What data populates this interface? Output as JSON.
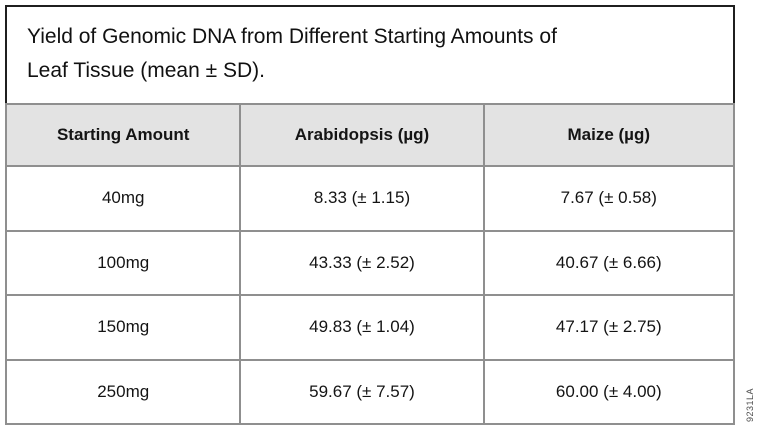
{
  "figure": {
    "title": "Yield of Genomic DNA from Different Starting Amounts of Leaf Tissue (mean ± SD).",
    "title_line1": "Yield of Genomic DNA from Different Starting Amounts of",
    "title_line2": "Leaf Tissue (mean ± SD).",
    "watermark": "9231LA"
  },
  "table": {
    "columns": [
      "Starting Amount",
      "Arabidopsis (µg)",
      "Maize (µg)"
    ],
    "rows": [
      [
        "40mg",
        "8.33 (± 1.15)",
        "7.67 (± 0.58)"
      ],
      [
        "100mg",
        "43.33 (± 2.52)",
        "40.67 (± 6.66)"
      ],
      [
        "150mg",
        "49.83 (± 1.04)",
        "47.17 (± 2.75)"
      ],
      [
        "250mg",
        "59.67 (± 7.57)",
        "60.00 (± 4.00)"
      ]
    ]
  },
  "chart_data": {
    "type": "table",
    "title": "Yield of Genomic DNA from Different Starting Amounts of Leaf Tissue (mean ± SD).",
    "categories": [
      "40mg",
      "100mg",
      "150mg",
      "250mg"
    ],
    "series": [
      {
        "name": "Arabidopsis (µg)",
        "mean": [
          8.33,
          43.33,
          49.83,
          59.67
        ],
        "sd": [
          1.15,
          2.52,
          1.04,
          7.57
        ]
      },
      {
        "name": "Maize (µg)",
        "mean": [
          7.67,
          40.67,
          47.17,
          60.0
        ],
        "sd": [
          0.58,
          6.66,
          2.75,
          4.0
        ]
      }
    ]
  },
  "colors": {
    "title_border": "#1f1f1f",
    "table_border": "#8f8f8f",
    "header_bg": "#e3e3e3",
    "text": "#141414",
    "watermark_text": "#4d4d4d"
  }
}
